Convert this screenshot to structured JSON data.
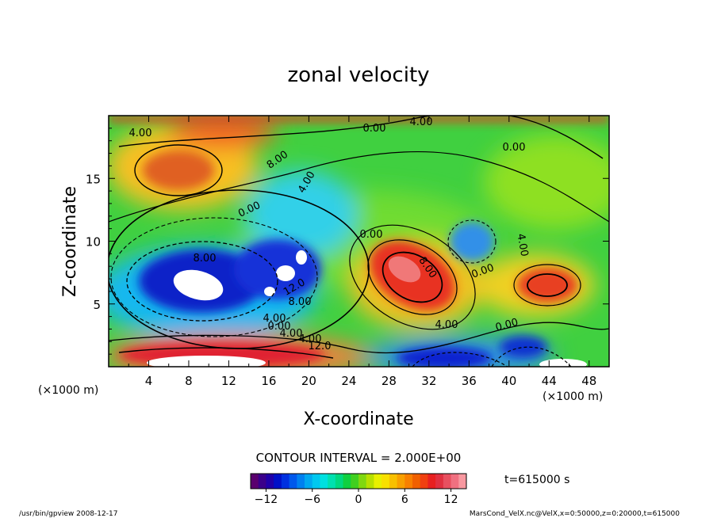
{
  "chart_data": {
    "type": "heatmap",
    "title": "zonal velocity",
    "xlabel": "X-coordinate",
    "ylabel": "Z-coordinate",
    "x_units": "(×1000 m)",
    "y_units": "(×1000 m)",
    "xlim": [
      0,
      50
    ],
    "ylim": [
      0,
      20
    ],
    "x_ticks": [
      "4",
      "8",
      "12",
      "16",
      "20",
      "24",
      "28",
      "32",
      "36",
      "40",
      "44",
      "48"
    ],
    "y_ticks": [
      "5",
      "10",
      "15"
    ],
    "contour_interval_text": "CONTOUR INTERVAL = 2.000E+00",
    "time_text": "t=615000 s",
    "colorbar": {
      "ticks": [
        "−12",
        "−6",
        "0",
        "6",
        "12"
      ],
      "range": [
        -14,
        14
      ],
      "colors": [
        "#5a006e",
        "#2a0096",
        "#0018c8",
        "#0048e8",
        "#0080f0",
        "#00b8f0",
        "#00e0e0",
        "#00d890",
        "#20d020",
        "#a0e000",
        "#f0f000",
        "#f8c000",
        "#f88000",
        "#f03000",
        "#e02020",
        "#f06070"
      ]
    },
    "contour_labels": [
      "4.00",
      "0.00",
      "4.00",
      "0.00",
      "8.00",
      "0.00",
      "4.00",
      "0.00",
      "8.00",
      "12.0",
      "8.00",
      "4.00",
      "0.00",
      "4.00",
      "4.00",
      "12.0",
      "8.00",
      "4.00",
      "0.00",
      "4.00",
      "0.00"
    ],
    "features": [
      {
        "x": 9.5,
        "z": 7.5,
        "value": -14
      },
      {
        "x": 18,
        "z": 7.0,
        "value": -12
      },
      {
        "x": 36,
        "z": 9.5,
        "value": -6
      },
      {
        "x": 30,
        "z": 7.0,
        "value": 12
      },
      {
        "x": 44,
        "z": 6.5,
        "value": 10
      },
      {
        "x": 8,
        "z": 16,
        "value": 8
      },
      {
        "x": 11,
        "z": 0.8,
        "value": 14
      },
      {
        "x": 40,
        "z": 1.5,
        "value": -10
      }
    ],
    "footer_left": "/usr/bin/gpview   2008-12-17",
    "footer_right": "MarsCond_VelX.nc@VelX,x=0:50000,z=0:20000,t=615000"
  }
}
